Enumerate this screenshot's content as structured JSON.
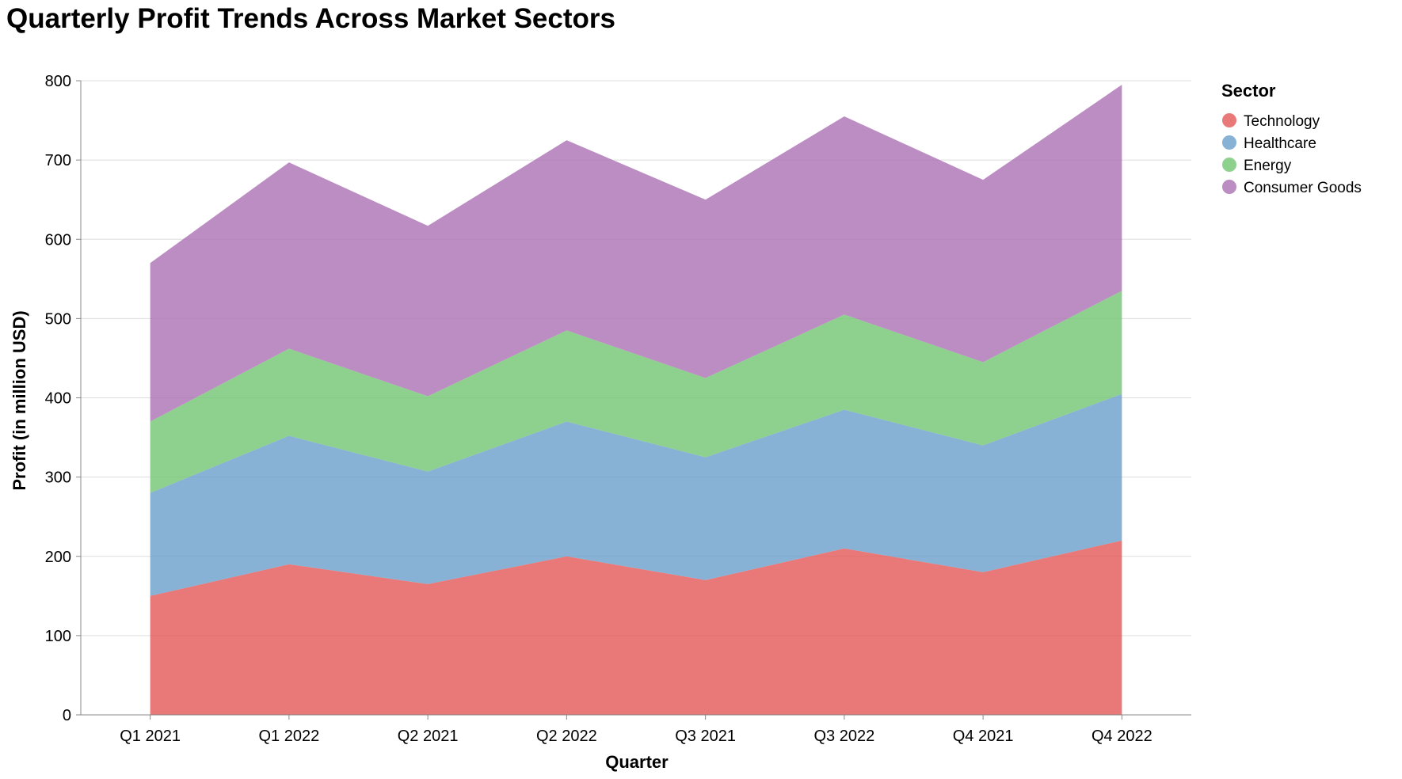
{
  "chart_data": {
    "type": "area",
    "stacked": true,
    "title": "Quarterly Profit Trends Across Market Sectors",
    "xlabel": "Quarter",
    "ylabel": "Profit (in million USD)",
    "ylim": [
      0,
      800
    ],
    "yticks": [
      0,
      100,
      200,
      300,
      400,
      500,
      600,
      700,
      800
    ],
    "grid": true,
    "legend_title": "Sector",
    "legend_position": "right",
    "categories": [
      "Q1 2021",
      "Q1 2022",
      "Q2 2021",
      "Q2 2022",
      "Q3 2021",
      "Q3 2022",
      "Q4 2021",
      "Q4 2022"
    ],
    "series": [
      {
        "name": "Technology",
        "color": "#e45756",
        "values": [
          150,
          190,
          165,
          200,
          170,
          210,
          180,
          220
        ]
      },
      {
        "name": "Healthcare",
        "color": "#6a9fcb",
        "values": [
          130,
          162,
          142,
          170,
          155,
          175,
          160,
          185
        ]
      },
      {
        "name": "Energy",
        "color": "#72c472",
        "values": [
          90,
          110,
          95,
          115,
          100,
          120,
          105,
          130
        ]
      },
      {
        "name": "Consumer Goods",
        "color": "#ab71b3",
        "values": [
          200,
          235,
          215,
          240,
          225,
          250,
          230,
          260
        ]
      }
    ]
  }
}
